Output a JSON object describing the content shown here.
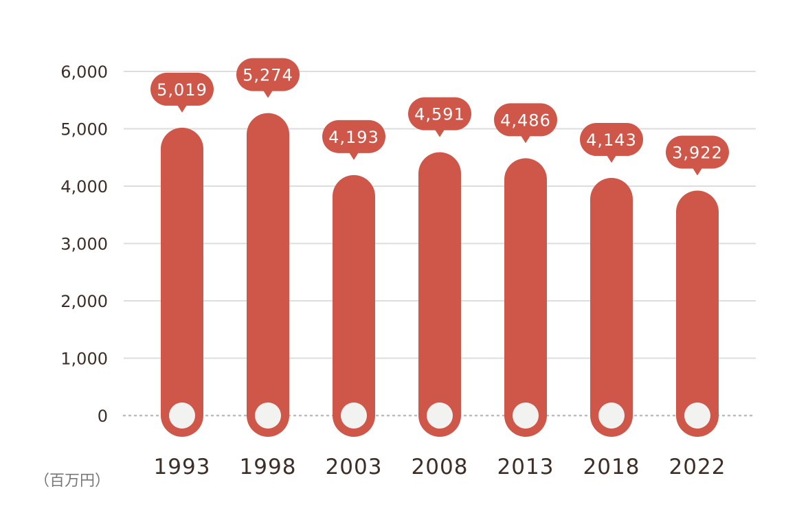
{
  "chart_data": {
    "type": "bar",
    "categories": [
      "1993",
      "1998",
      "2003",
      "2008",
      "2013",
      "2018",
      "2022"
    ],
    "values": [
      5019,
      5274,
      4193,
      4591,
      4486,
      4143,
      3922
    ],
    "data_labels": [
      "5,019",
      "5,274",
      "4,193",
      "4,591",
      "4,486",
      "4,143",
      "3,922"
    ],
    "y_ticks": [
      "0",
      "1,000",
      "2,000",
      "3,000",
      "4,000",
      "5,000",
      "6,000"
    ],
    "ylim": [
      0,
      6000
    ],
    "unit_label": "（百万円）",
    "grid": true,
    "colors": {
      "bar": "#cf5749",
      "marker": "#f2f2f1",
      "grid": "#dddddd",
      "baseline": "#bbbbbb",
      "text": "#3d2f27"
    }
  }
}
